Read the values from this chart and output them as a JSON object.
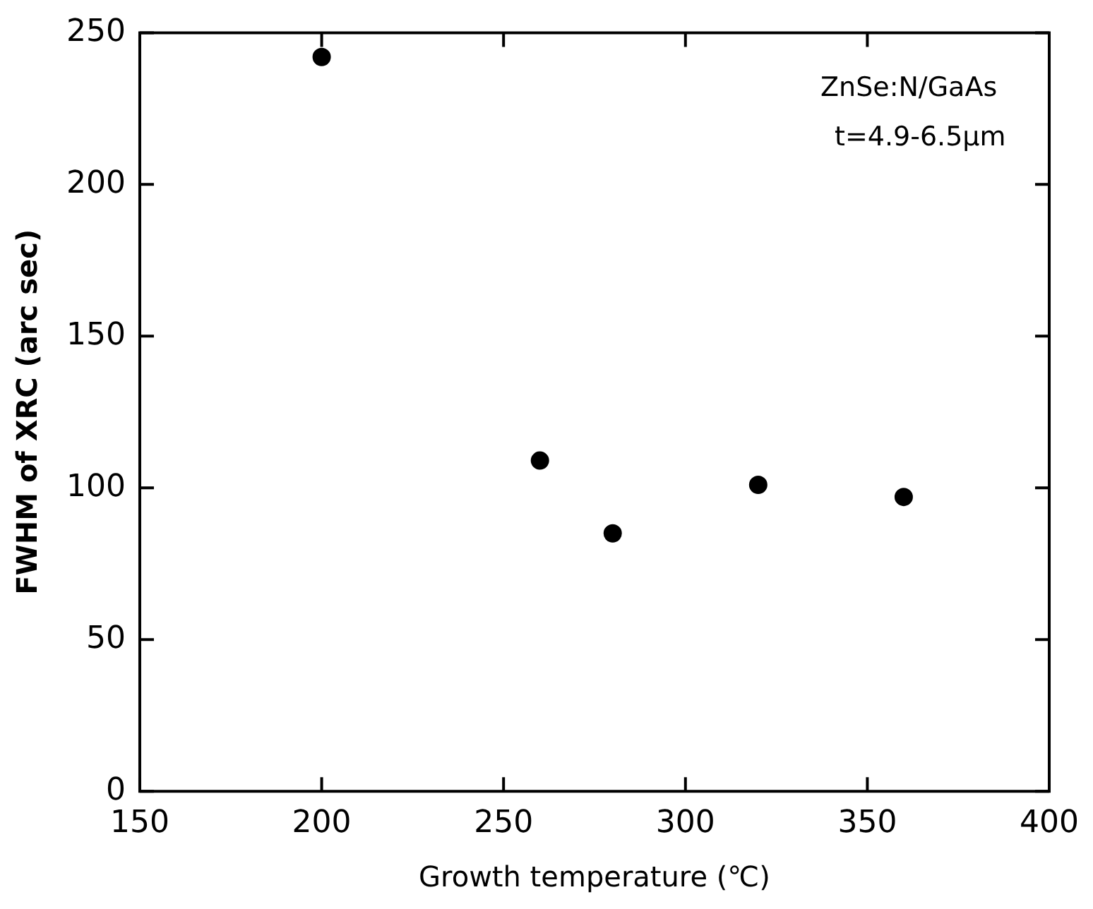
{
  "chart_data": {
    "type": "scatter",
    "xlabel": "Growth temperature (℃)",
    "ylabel": "FWHM of XRC (arc sec)",
    "annotations": [
      "ZnSe:N/GaAs",
      "t=4.9-6.5μm"
    ],
    "x": [
      200,
      260,
      280,
      320,
      360
    ],
    "values": [
      242,
      109,
      85,
      101,
      97
    ],
    "color": "#000000",
    "marker": "circle",
    "grid": false,
    "xlim": [
      150,
      400
    ],
    "xticks": [
      150,
      200,
      250,
      300,
      350,
      400
    ],
    "ylim": [
      0,
      250
    ],
    "yticks": [
      0,
      50,
      100,
      150,
      200,
      250
    ]
  }
}
